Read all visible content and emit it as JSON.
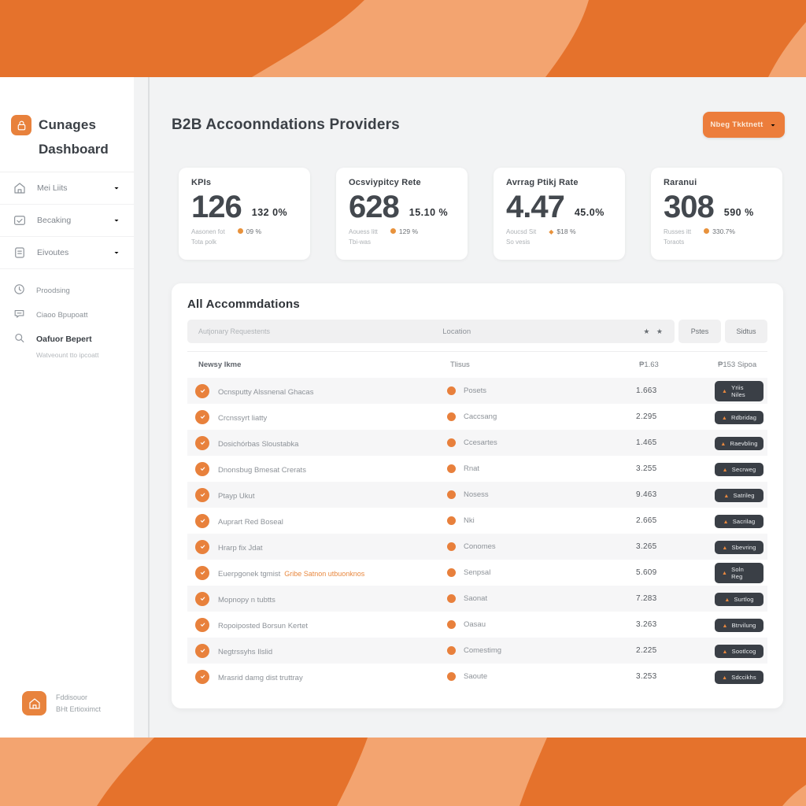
{
  "colors": {
    "primary_orange": "#EC7D3B",
    "banner_orange": "#E5722C",
    "banner_light_orange": "#F3A470",
    "badge_dark": "#3A3F46",
    "status_dot_orange": "#E8803C"
  },
  "sidebar": {
    "logo": {
      "icon": "lock-icon",
      "title_line1": "Cunages",
      "title_line2": "Dashboard"
    },
    "nav_items": [
      {
        "label": "Mei Liits",
        "icon": "home-icon",
        "chevron_icon": "chevron-down-icon"
      },
      {
        "label": "Becaking",
        "icon": "booking-icon",
        "chevron_icon": "chevron-down-icon"
      },
      {
        "label": "Eivoutes",
        "icon": "invoices-icon",
        "chevron_icon": "chevron-down-icon"
      }
    ],
    "secondary_items": [
      {
        "label": "Proodsing",
        "icon": "processing-icon"
      },
      {
        "label": "Ciaoo Bpupoatt",
        "icon": "support-icon"
      },
      {
        "label": "Oafuor Bepert",
        "icon": "report-icon",
        "bold": true,
        "subtext": "Watveount tto ipcoatt"
      }
    ],
    "footer": {
      "icon": "house-icon",
      "line1": "Fddisouor",
      "line2": "BHt Ertioximct"
    }
  },
  "header": {
    "title": "B2B Accoonndations Providers",
    "action_button": {
      "label": "Nbeg Tkktnett",
      "chevron_icon": "chevron-down-icon"
    }
  },
  "kpis": [
    {
      "title": "KPIs",
      "value": "126",
      "delta": "132 0%",
      "sub_line1": "Aasonen fot",
      "sub_line2": "Tota polk",
      "badge_icon": "dot",
      "badge_text": "09 %"
    },
    {
      "title": "Ocsviypitcy Rete",
      "value": "628",
      "delta": "15.10 %",
      "sub_line1": "Aouess litt",
      "sub_line2": "Tbi-was",
      "badge_icon": "dot",
      "badge_text": "129 %"
    },
    {
      "title": "Avrrag Ptikj Rate",
      "value": "4.47",
      "delta": "45.0%",
      "sub_line1": "Aoucsd Sit",
      "sub_line2": "So vesis",
      "badge_icon": "diamond",
      "badge_text": "$18 %"
    },
    {
      "title": "Raranui",
      "value": "308",
      "delta": "590 %",
      "sub_line1": "Russes itt",
      "sub_line2": "Toraots",
      "badge_icon": "dot",
      "badge_text": "330.7%"
    }
  ],
  "table": {
    "section_title": "All Accommdations",
    "filter_bar": {
      "left_label": "Autjonary Requestents",
      "center_label": "Location",
      "stars": "★ ★",
      "chips": [
        "Pstes",
        "Sidtus"
      ]
    },
    "columns": {
      "name": "Newsy Ikme",
      "status": "Tlisus",
      "price": "₱1.63",
      "badge": "₱153 Sipoa"
    },
    "row_avatar_icon": "check-icon",
    "badge_flame_icon": "flame-icon",
    "rows": [
      {
        "name": "Ocnsputty Alssnenal Ghacas",
        "status": "Posets",
        "price": "1.663",
        "badge": "Yriis Niles"
      },
      {
        "name": "Crcnssyrt liatty",
        "status": "Caccsang",
        "price": "2.295",
        "badge": "Rdbridag"
      },
      {
        "name": "Dosichórbas Sloustabka",
        "status": "Ccesartes",
        "price": "1.465",
        "badge": "Raevbling"
      },
      {
        "name": "Dnonsbug Bmesat Crerats",
        "status": "Rnat",
        "price": "3.255",
        "badge": "Secrweg"
      },
      {
        "name": "Ptayp Ukut",
        "status": "Nosess",
        "price": "9.463",
        "badge": "Satrileg"
      },
      {
        "name": "Auprart Red Boseal",
        "status": "Nki",
        "price": "2.665",
        "badge": "Sacrilag"
      },
      {
        "name": "Hrarp fix Jdat",
        "status": "Conomes",
        "price": "3.265",
        "badge": "Sbevring"
      },
      {
        "name": "Euerpgonek tgmist",
        "name_extra": "Gribe Satnon utbuonknos",
        "status": "Senpsal",
        "price": "5.609",
        "badge": "Soln Reg"
      },
      {
        "name": "Mopnopy n tubtts",
        "status": "Saonat",
        "price": "7.283",
        "badge": "Surtlog"
      },
      {
        "name": "Ropoiposted Borsun Kertet",
        "status": "Oasau",
        "price": "3.263",
        "badge": "Btrvilung"
      },
      {
        "name": "Negtrssyhs Ilslid",
        "status": "Comestimg",
        "price": "2.225",
        "badge": "Sootlcog"
      },
      {
        "name": "Mrasrid damg dist truttray",
        "status": "Saoute",
        "price": "3.253",
        "badge": "Sdccikhs"
      }
    ]
  }
}
